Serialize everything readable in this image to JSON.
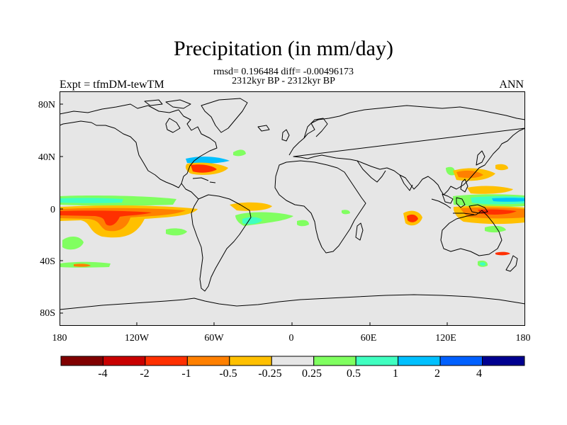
{
  "title": "Precipitation (in mm/day)",
  "stats_line": "rmsd= 0.196484 diff= -0.00496173",
  "period_line": "2312kyr BP - 2312kyr BP",
  "experiment": "Expt = tfmDM-tewTM",
  "season": "ANN",
  "map": {
    "projection": "cylindrical-equidistant",
    "lon_range": [
      -180,
      180
    ],
    "lat_range": [
      -90,
      90
    ],
    "background_color": "#e6e6e6",
    "lat_labels": [
      "80N",
      "40N",
      "0",
      "40S",
      "80S"
    ],
    "lon_labels": [
      "180",
      "120W",
      "60W",
      "0",
      "60E",
      "120E",
      "180"
    ]
  },
  "colorbar": {
    "colors": [
      "#800000",
      "#c80000",
      "#ff3000",
      "#ff8000",
      "#ffc000",
      "#e6e6e6",
      "#80ff60",
      "#40ffc0",
      "#00c0ff",
      "#0060ff",
      "#000090"
    ],
    "labels": [
      "-4",
      "-2",
      "-1",
      "-0.5",
      "-0.25",
      "0.25",
      "0.5",
      "1",
      "2",
      "4"
    ]
  }
}
